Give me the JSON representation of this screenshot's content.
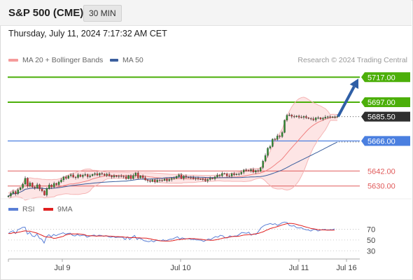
{
  "header": {
    "symbol": "S&P 500 (CME)",
    "interval": "30 MIN",
    "datetime": "Thursday, July 11, 2024 7:17:32 AM CET"
  },
  "legend": {
    "ma20_label": "MA 20 + Bollinger Bands",
    "ma50_label": "MA 50",
    "credit": "Research © 2024 Trading Central"
  },
  "colors": {
    "resistance": "#4caf0a",
    "support": "#e05a5a",
    "pivot": "#4a7fe0",
    "current": "#2f2f2f",
    "arrow": "#2f5fa6",
    "candle_up": "#2e8b2e",
    "candle_down": "#d03030",
    "ma20": "#f08080",
    "ma50": "#3b5f9e",
    "band_fill": "#fde0e0",
    "rsi": "#5a7fd6",
    "rsi_ma": "#e02020"
  },
  "chart_data": [
    {
      "type": "candlestick",
      "title": "",
      "ylim": [
        5622,
        5725
      ],
      "x_ticks": [
        "Jul 9",
        "Jul 10",
        "Jul 11",
        "Jul 16"
      ],
      "levels": [
        {
          "label": "5717.00",
          "value": 5717.0,
          "kind": "resistance"
        },
        {
          "label": "5697.00",
          "value": 5697.0,
          "kind": "resistance"
        },
        {
          "label": "5685.50",
          "value": 5685.5,
          "kind": "current"
        },
        {
          "label": "5666.00",
          "value": 5666.0,
          "kind": "pivot"
        },
        {
          "label": "5642.00",
          "value": 5642.0,
          "kind": "support"
        },
        {
          "label": "5630.00",
          "value": 5630.0,
          "kind": "support"
        }
      ],
      "target": 5717.0,
      "closes": [
        5622.0,
        5624.2,
        5625.5,
        5623.8,
        5627.0,
        5628.6,
        5631.5,
        5636.2,
        5630.0,
        5632.4,
        5629.1,
        5628.4,
        5631.0,
        5627.6,
        5626.1,
        5622.8,
        5628.0,
        5630.8,
        5629.2,
        5632.1,
        5631.0,
        5633.2,
        5634.9,
        5637.2,
        5636.1,
        5638.2,
        5639.0,
        5637.1,
        5636.8,
        5639.0,
        5637.5,
        5638.6,
        5639.2,
        5637.4,
        5638.2,
        5639.3,
        5639.9,
        5638.7,
        5640.0,
        5639.6,
        5638.5,
        5639.5,
        5638.1,
        5637.3,
        5638.2,
        5637.5,
        5637.9,
        5637.7,
        5637.6,
        5635.9,
        5638.3,
        5636.0,
        5638.4,
        5640.4,
        5636.5,
        5638.1,
        5636.6,
        5634.9,
        5634.3,
        5633.6,
        5635.0,
        5633.3,
        5634.8,
        5634.6,
        5634.4,
        5635.5,
        5634.2,
        5635.2,
        5636.1,
        5636.2,
        5637.7,
        5638.9,
        5636.2,
        5637.9,
        5637.0,
        5636.9,
        5636.7,
        5635.9,
        5636.2,
        5635.6,
        5635.5,
        5635.3,
        5634.1,
        5635.2,
        5636.3,
        5635.8,
        5637.2,
        5638.7,
        5638.1,
        5640.1,
        5639.7,
        5638.0,
        5637.9,
        5639.9,
        5639.0,
        5639.6,
        5639.6,
        5641.0,
        5642.8,
        5642.5,
        5642.2,
        5643.1,
        5641.1,
        5642.3,
        5641.8,
        5644.7,
        5649.9,
        5654.4,
        5660.2,
        5661.6,
        5667.5,
        5667.2,
        5670.1,
        5669.5,
        5672.8,
        5682.6,
        5686.6,
        5686.8,
        5685.7,
        5685.3,
        5686.0,
        5685.0,
        5684.9,
        5685.6,
        5684.6,
        5684.0,
        5683.8,
        5682.8,
        5684.5,
        5684.6,
        5683.5,
        5684.2,
        5685.1,
        5685.4,
        5684.9,
        5685.3,
        5685.3,
        5685.6
      ],
      "rsi_ylim": [
        20,
        90
      ],
      "rsi_ticks": [
        70,
        50,
        30
      ],
      "rsi_series": [
        {
          "name": "RSI",
          "values": [
            62.0,
            65.5,
            67.1,
            61.9,
            69.3,
            71.0,
            73.6,
            73.8,
            60.8,
            64.1,
            57.5,
            56.2,
            61.2,
            53.4,
            51.5,
            44.4,
            56.1,
            59.8,
            55.9,
            60.3,
            58.0,
            60.3,
            61.7,
            63.4,
            60.8,
            62.1,
            62.6,
            58.4,
            57.5,
            60.5,
            57.6,
            58.8,
            59.3,
            55.2,
            56.8,
            58.3,
            59.2,
            57.0,
            58.9,
            58.4,
            56.8,
            58.3,
            56.1,
            54.9,
            56.4,
            54.6,
            55.4,
            55.1,
            55.0,
            50.6,
            55.8,
            50.9,
            55.2,
            58.4,
            51.0,
            53.8,
            51.4,
            48.6,
            47.7,
            46.7,
            48.9,
            46.4,
            49.3,
            48.8,
            48.5,
            50.5,
            48.3,
            50.1,
            51.6,
            51.8,
            54.1,
            56.0,
            51.6,
            54.0,
            52.4,
            52.4,
            52.0,
            50.7,
            51.2,
            50.1,
            49.9,
            49.5,
            47.3,
            49.5,
            51.9,
            50.7,
            53.8,
            56.4,
            55.2,
            58.7,
            57.8,
            54.0,
            53.8,
            57.8,
            56.2,
            57.4,
            57.4,
            60.5,
            64.0,
            63.3,
            62.5,
            64.5,
            58.9,
            61.5,
            60.3,
            65.7,
            72.3,
            75.8,
            78.1,
            79.1,
            80.6,
            78.7,
            80.3,
            77.1,
            79.4,
            82.1,
            83.2,
            82.5,
            76.8,
            75.8,
            76.5,
            72.9,
            72.1,
            72.7,
            70.3,
            68.9,
            68.6,
            66.5,
            69.4,
            69.6,
            66.6,
            68.2,
            69.2,
            69.6,
            68.1,
            69.1,
            69.0,
            70.6
          ]
        },
        {
          "name": "9MA",
          "values": [
            62.0,
            62.0,
            63.5,
            63.2,
            64.2,
            65.0,
            66.2,
            66.9,
            66.3,
            66.4,
            65.1,
            63.9,
            62.8,
            60.7,
            58.9,
            56.8,
            55.5,
            55.4,
            54.8,
            53.1,
            53.4,
            54.5,
            55.6,
            56.7,
            59.1,
            60.3,
            61.2,
            61.3,
            61.1,
            61.5,
            60.9,
            60.4,
            59.9,
            58.1,
            57.7,
            57.8,
            57.6,
            57.1,
            57.6,
            57.5,
            57.4,
            57.6,
            57.2,
            57.1,
            56.8,
            56.2,
            56.3,
            56.0,
            55.9,
            55.0,
            55.1,
            54.3,
            54.3,
            54.7,
            54.0,
            53.9,
            53.6,
            53.6,
            53.3,
            52.6,
            51.8,
            50.5,
            50.1,
            49.2,
            48.4,
            48.3,
            48.0,
            48.0,
            48.3,
            48.7,
            49.7,
            50.6,
            50.8,
            51.4,
            51.7,
            52.3,
            52.9,
            52.6,
            52.5,
            52.1,
            51.6,
            51.3,
            50.6,
            49.9,
            49.8,
            49.6,
            49.5,
            50.3,
            51.1,
            52.2,
            53.5,
            54.0,
            54.7,
            55.5,
            56.4,
            56.6,
            56.7,
            57.2,
            58.3,
            59.3,
            59.6,
            60.1,
            60.1,
            60.7,
            61.6,
            62.3,
            63.8,
            65.2,
            67.4,
            69.3,
            71.2,
            72.5,
            73.6,
            75.0,
            76.4,
            78.0,
            79.1,
            80.3,
            80.8,
            80.5,
            80.0,
            79.0,
            77.6,
            76.8,
            75.2,
            73.9,
            72.9,
            71.5,
            70.8,
            70.0,
            69.2,
            68.9,
            68.7,
            68.6,
            68.4,
            68.3,
            68.3,
            68.4
          ]
        }
      ]
    }
  ]
}
